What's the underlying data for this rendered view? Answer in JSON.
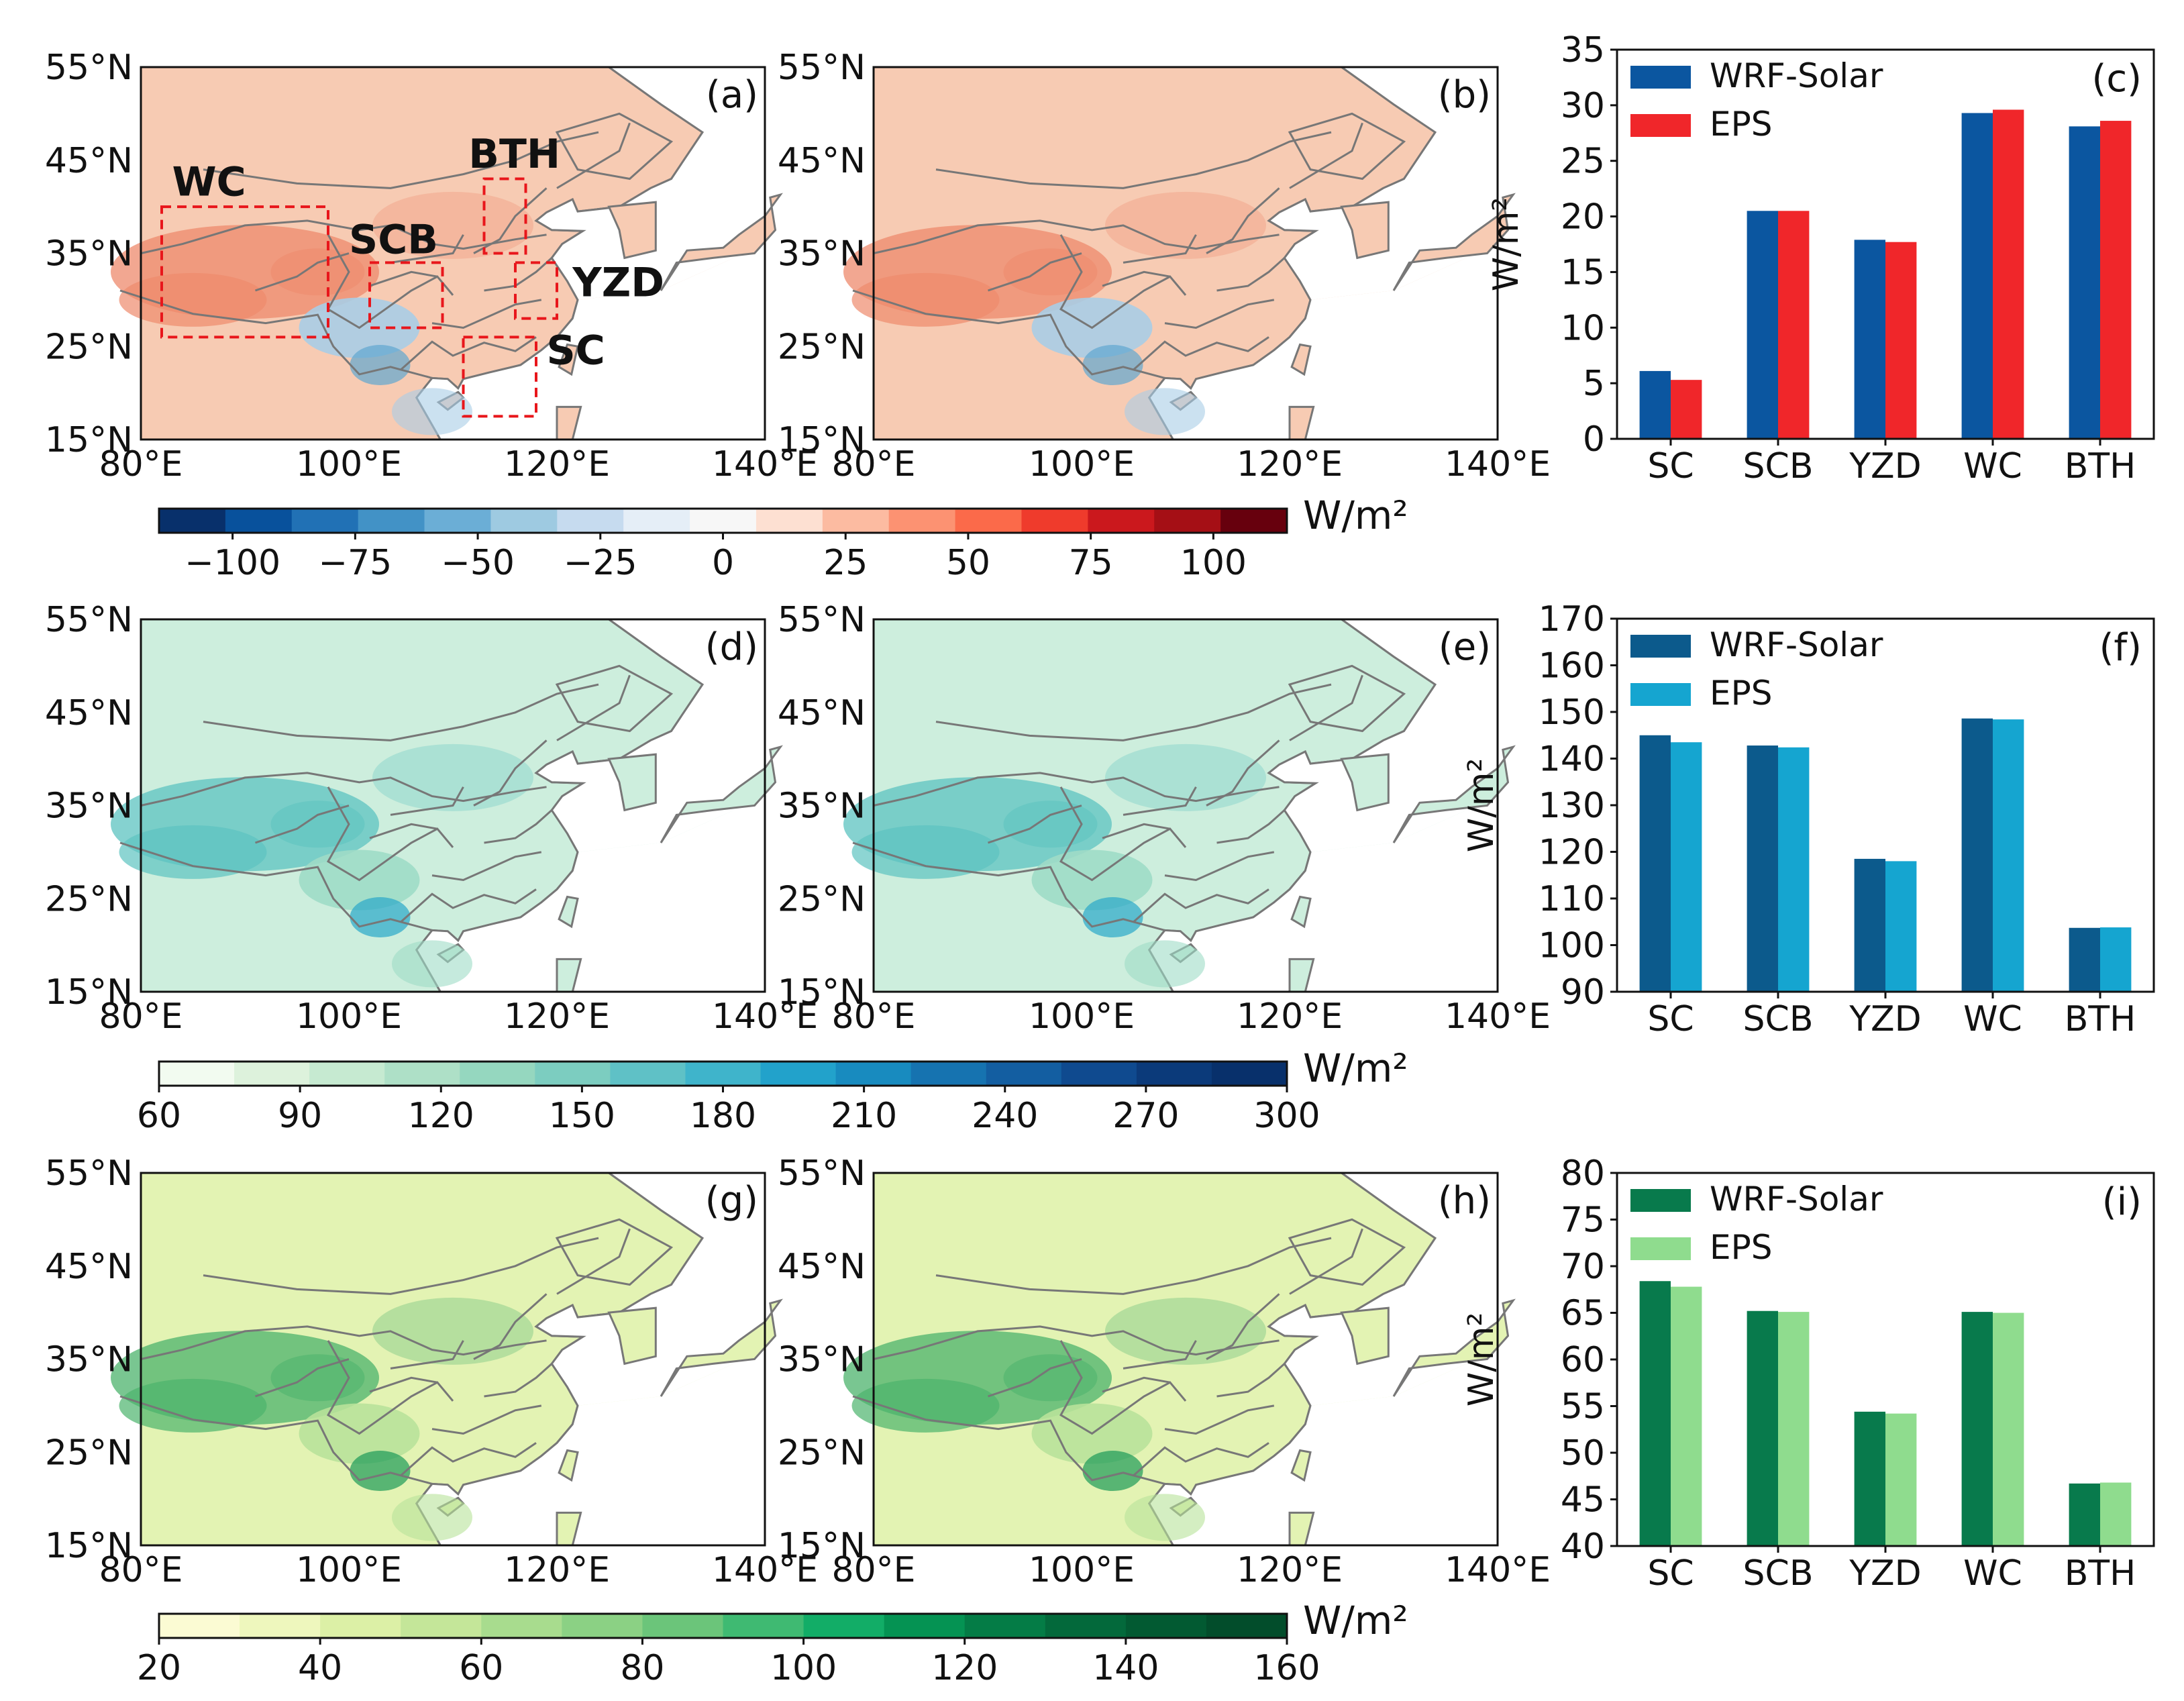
{
  "map_axes": {
    "lat_labels": [
      "55°N",
      "45°N",
      "35°N",
      "25°N",
      "15°N"
    ],
    "lon_labels": [
      "80°E",
      "100°E",
      "120°E",
      "140°E"
    ]
  },
  "maps": [
    {
      "label": "(a)",
      "field": "difference",
      "colors": {
        "base": "#f7cbb3",
        "hot": "#ee8a6c",
        "cool": "#a9cde6",
        "deep": "#5fa6d0"
      }
    },
    {
      "label": "(b)",
      "field": "difference",
      "colors": {
        "base": "#f7cbb3",
        "hot": "#ee8a6c",
        "cool": "#a9cde6",
        "deep": "#5fa6d0"
      }
    },
    {
      "label": "(d)",
      "field": "value",
      "colors": {
        "base": "#cdeedd",
        "hot": "#5cc3c0",
        "cool": "#9fdcc7",
        "deep": "#2aa8c9"
      }
    },
    {
      "label": "(e)",
      "field": "value",
      "colors": {
        "base": "#cdeedd",
        "hot": "#5cc3c0",
        "cool": "#9fdcc7",
        "deep": "#2aa8c9"
      }
    },
    {
      "label": "(g)",
      "field": "value",
      "colors": {
        "base": "#e3f3b3",
        "hot": "#4cb36c",
        "cool": "#b8e29a",
        "deep": "#1d9a58"
      }
    },
    {
      "label": "(h)",
      "field": "value",
      "colors": {
        "base": "#e3f3b3",
        "hot": "#4cb36c",
        "cool": "#b8e29a",
        "deep": "#1d9a58"
      }
    }
  ],
  "regions": [
    {
      "name": "WC"
    },
    {
      "name": "SCB"
    },
    {
      "name": "BTH"
    },
    {
      "name": "YZD"
    },
    {
      "name": "SC"
    }
  ],
  "colorbars": [
    {
      "unit": "W/m²",
      "min": -115,
      "max": 115,
      "ticks": [
        "−100",
        "−75",
        "−50",
        "−25",
        "0",
        "25",
        "50",
        "75",
        "100"
      ],
      "tick_values": [
        -100,
        -75,
        -50,
        -25,
        0,
        25,
        50,
        75,
        100
      ],
      "colors": [
        "#08306b",
        "#08519c",
        "#2171b5",
        "#4292c6",
        "#6baed6",
        "#9ecae1",
        "#c6dbef",
        "#e5eef7",
        "#f7f7f7",
        "#fde0d2",
        "#fcbba1",
        "#fc9272",
        "#fb6a4a",
        "#ef3b2c",
        "#cb181d",
        "#a50f15",
        "#67000d"
      ]
    },
    {
      "unit": "W/m²",
      "min": 60,
      "max": 300,
      "ticks": [
        "60",
        "90",
        "120",
        "150",
        "180",
        "210",
        "240",
        "270",
        "300"
      ],
      "tick_values": [
        60,
        90,
        120,
        150,
        180,
        210,
        240,
        270,
        300
      ],
      "colors": [
        "#f2fbf0",
        "#ddf2dc",
        "#c6ead1",
        "#aee0c7",
        "#95d7bf",
        "#7ccdc0",
        "#5fc1c6",
        "#3fb4cb",
        "#22a2cb",
        "#188bbf",
        "#1673b0",
        "#135ea1",
        "#0f4a8f",
        "#0b3a7a",
        "#08306b"
      ]
    },
    {
      "unit": "W/m²",
      "min": 20,
      "max": 160,
      "ticks": [
        "20",
        "40",
        "60",
        "80",
        "100",
        "120",
        "140",
        "160"
      ],
      "tick_values": [
        20,
        40,
        60,
        80,
        100,
        120,
        140,
        160
      ],
      "colors": [
        "#fbfbd3",
        "#eef7bd",
        "#dcf0a6",
        "#c4e699",
        "#a8dc8e",
        "#8bd184",
        "#6bc57a",
        "#3fba72",
        "#12ad67",
        "#059353",
        "#047c46",
        "#03693b",
        "#025a32",
        "#024d2b"
      ]
    }
  ],
  "chart_data": [
    {
      "type": "bar",
      "label": "(c)",
      "ylabel": "W/m²",
      "ylim": [
        0,
        35
      ],
      "yticks": [
        0,
        5,
        10,
        15,
        20,
        25,
        30,
        35
      ],
      "categories": [
        "SC",
        "SCB",
        "YZD",
        "WC",
        "BTH"
      ],
      "series": [
        {
          "name": "WRF-Solar",
          "color": "#0b56a0",
          "values": [
            6.1,
            20.5,
            17.9,
            29.3,
            28.1
          ]
        },
        {
          "name": "EPS",
          "color": "#f0262a",
          "values": [
            5.3,
            20.5,
            17.7,
            29.6,
            28.6
          ]
        }
      ],
      "legend_position": "top-left"
    },
    {
      "type": "bar",
      "label": "(f)",
      "ylabel": "W/m²",
      "ylim": [
        90,
        170
      ],
      "yticks": [
        90,
        100,
        110,
        120,
        130,
        140,
        150,
        160,
        170
      ],
      "categories": [
        "SC",
        "SCB",
        "YZD",
        "WC",
        "BTH"
      ],
      "series": [
        {
          "name": "WRF-Solar",
          "color": "#0c5a8c",
          "values": [
            145.0,
            142.8,
            118.5,
            148.6,
            103.7
          ]
        },
        {
          "name": "EPS",
          "color": "#15a5d0",
          "values": [
            143.5,
            142.4,
            118.0,
            148.4,
            103.8
          ]
        }
      ],
      "legend_position": "top-left"
    },
    {
      "type": "bar",
      "label": "(i)",
      "ylabel": "W/m²",
      "ylim": [
        40,
        80
      ],
      "yticks": [
        40,
        45,
        50,
        55,
        60,
        65,
        70,
        75,
        80
      ],
      "categories": [
        "SC",
        "SCB",
        "YZD",
        "WC",
        "BTH"
      ],
      "series": [
        {
          "name": "WRF-Solar",
          "color": "#087a4c",
          "values": [
            68.4,
            65.2,
            54.4,
            65.1,
            46.7
          ]
        },
        {
          "name": "EPS",
          "color": "#8fdc8e",
          "values": [
            67.8,
            65.1,
            54.2,
            65.0,
            46.8
          ]
        }
      ],
      "legend_position": "top-left"
    }
  ]
}
